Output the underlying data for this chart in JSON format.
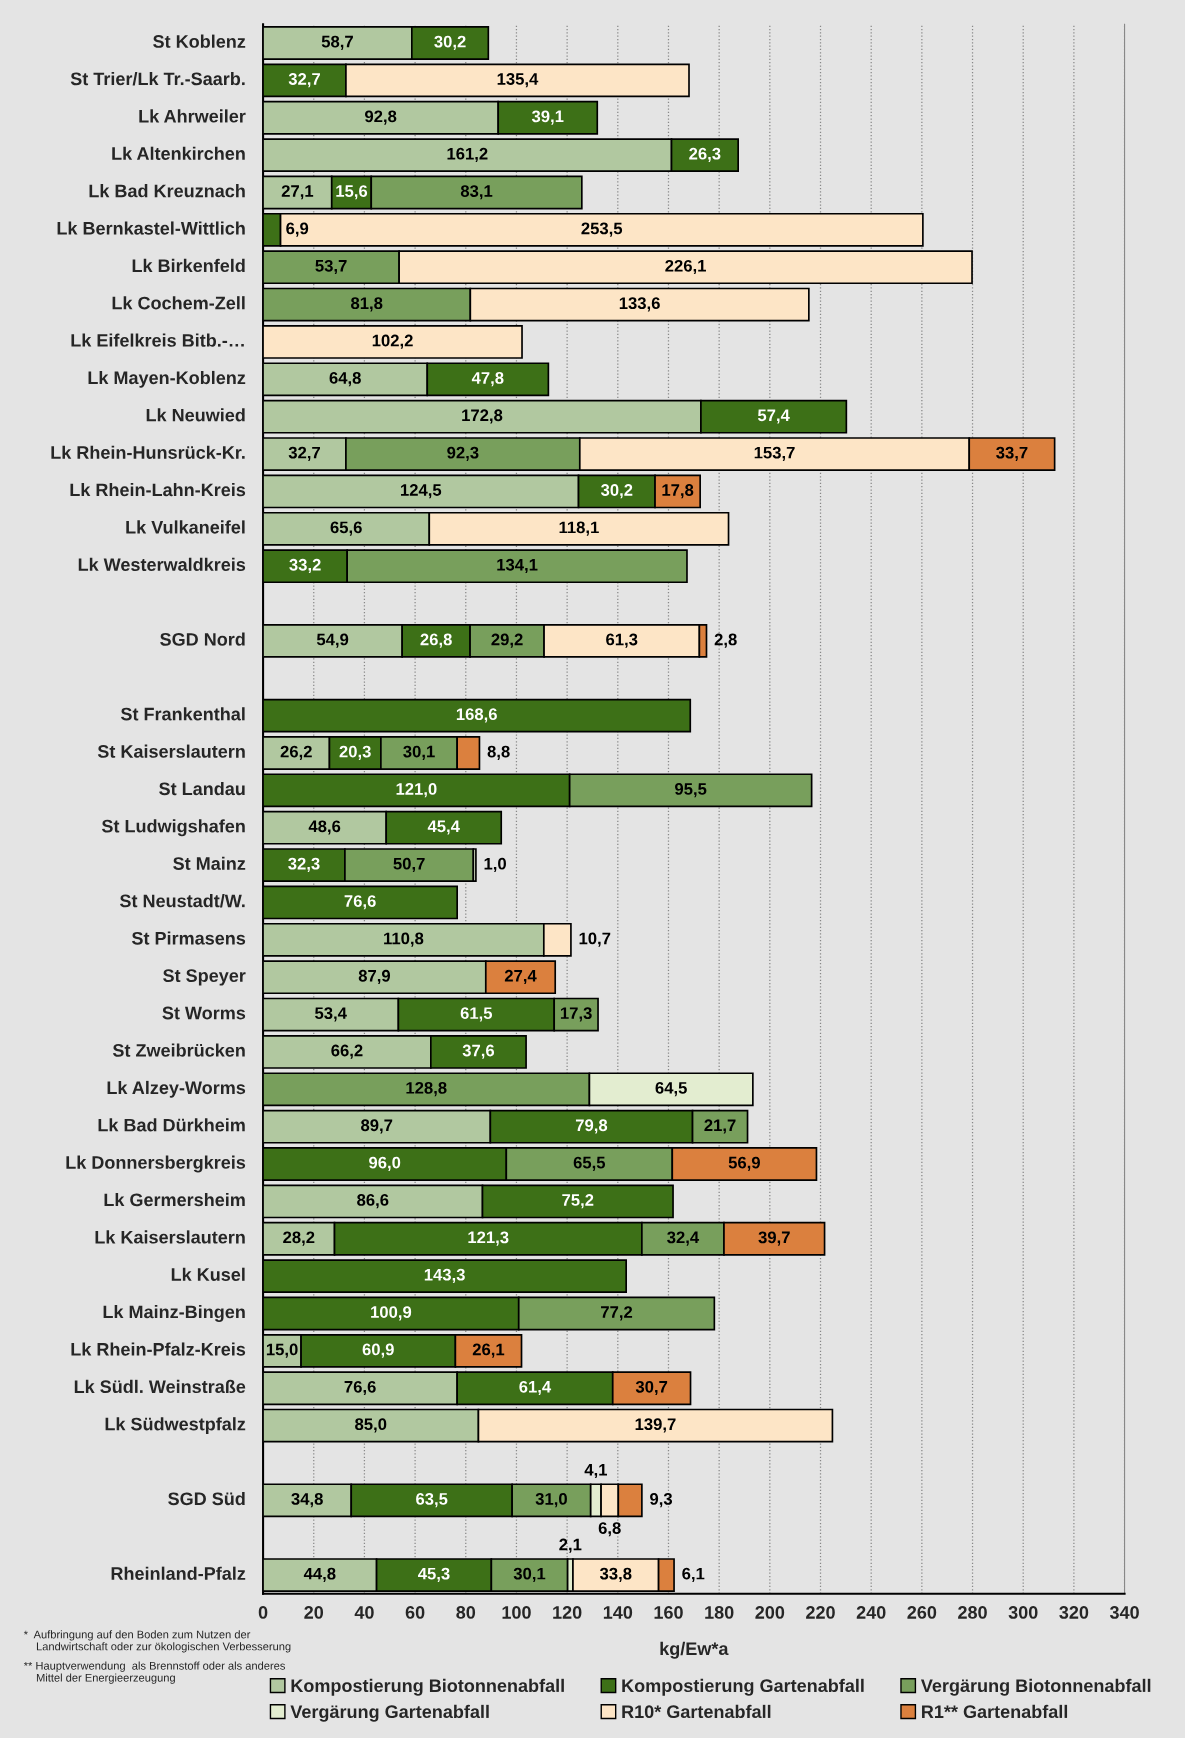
{
  "chart_data": {
    "type": "bar",
    "orientation": "horizontal",
    "stacked": true,
    "xlabel": "kg/Ew*a",
    "categories": [
      "St Koblenz",
      "St Trier/Lk Tr.-Saarb.",
      "Lk Ahrweiler",
      "Lk Altenkirchen",
      "Lk Bad Kreuznach",
      "Lk Bernkastel-Wittlich",
      "Lk Birkenfeld",
      "Lk Cochem-Zell",
      "Lk Eifelkreis Bitb.-…",
      "Lk Mayen-Koblenz",
      "Lk Neuwied",
      "Lk Rhein-Hunsrück-Kr.",
      "Lk Rhein-Lahn-Kreis",
      "Lk Vulkaneifel",
      "Lk Westerwaldkreis",
      null,
      "SGD Nord",
      null,
      "St Frankenthal",
      "St Kaiserslautern",
      "St Landau",
      "St Ludwigshafen",
      "St Mainz",
      "St Neustadt/W.",
      "St Pirmasens",
      "St Speyer",
      "St Worms",
      "St Zweibrücken",
      "Lk Alzey-Worms",
      "Lk Bad Dürkheim",
      "Lk Donnersbergkreis",
      "Lk Germersheim",
      "Lk Kaiserslautern",
      "Lk Kusel",
      "Lk Mainz-Bingen",
      "Lk Rhein-Pfalz-Kreis",
      "Lk Südl. Weinstraße",
      "Lk Südwestpfalz",
      null,
      "SGD Süd",
      null,
      "Rheinland-Pfalz"
    ],
    "series": [
      {
        "name": "Kompostierung Biotonnenabfall",
        "color": "#b1c8a0",
        "values": [
          58.7,
          null,
          92.8,
          161.2,
          27.1,
          null,
          null,
          null,
          null,
          64.8,
          172.8,
          32.7,
          124.5,
          65.6,
          null,
          null,
          54.9,
          null,
          null,
          26.2,
          null,
          48.6,
          null,
          null,
          110.8,
          87.9,
          53.4,
          66.2,
          null,
          89.7,
          null,
          86.6,
          28.2,
          null,
          null,
          15.0,
          76.6,
          85.0,
          null,
          34.8,
          null,
          44.8
        ],
        "value_labels": [
          "58,7",
          null,
          "92,8",
          "161,2",
          "27,1",
          null,
          null,
          null,
          null,
          "64,8",
          "172,8",
          "32,7",
          "124,5",
          "65,6",
          null,
          null,
          "54,9",
          null,
          null,
          "26,2",
          null,
          "48,6",
          null,
          null,
          "110,8",
          "87,9",
          "53,4",
          "66,2",
          null,
          "89,7",
          null,
          "86,6",
          "28,2",
          null,
          null,
          "15,0",
          "76,6",
          "85,0",
          null,
          "34,8",
          null,
          "44,8"
        ]
      },
      {
        "name": "Kompostierung Gartenabfall",
        "color": "#3d7017",
        "values": [
          30.2,
          32.7,
          39.1,
          26.3,
          15.6,
          6.9,
          null,
          null,
          null,
          47.8,
          57.4,
          null,
          30.2,
          null,
          33.2,
          null,
          26.8,
          null,
          168.6,
          20.3,
          121.0,
          45.4,
          32.3,
          76.6,
          null,
          null,
          61.5,
          37.6,
          null,
          79.8,
          96.0,
          75.2,
          121.3,
          143.3,
          100.9,
          60.9,
          61.4,
          null,
          null,
          63.5,
          null,
          45.3
        ],
        "value_labels": [
          "30,2",
          "32,7",
          "39,1",
          "26,3",
          "15,6",
          "6,9",
          null,
          null,
          null,
          "47,8",
          "57,4",
          null,
          "30,2",
          null,
          "33,2",
          null,
          "26,8",
          null,
          "168,6",
          "20,3",
          "121,0",
          "45,4",
          "32,3",
          "76,6",
          null,
          null,
          "61,5",
          "37,6",
          null,
          "79,8",
          "96,0",
          "75,2",
          "121,3",
          "143,3",
          "100,9",
          "60,9",
          "61,4",
          null,
          null,
          "63,5",
          null,
          "45,3"
        ]
      },
      {
        "name": "Vergärung Biotonnenabfall",
        "color": "#789f5c",
        "values": [
          null,
          null,
          null,
          null,
          83.1,
          null,
          53.7,
          81.8,
          null,
          null,
          null,
          92.3,
          null,
          null,
          134.1,
          null,
          29.2,
          null,
          null,
          30.1,
          95.5,
          null,
          50.7,
          null,
          null,
          null,
          17.3,
          null,
          128.8,
          21.7,
          65.5,
          null,
          32.4,
          null,
          77.2,
          null,
          null,
          null,
          null,
          31.0,
          null,
          30.1
        ],
        "value_labels": [
          null,
          null,
          null,
          null,
          "83,1",
          null,
          "53,7",
          "81,8",
          null,
          null,
          null,
          "92,3",
          null,
          null,
          "134,1",
          null,
          "29,2",
          null,
          null,
          "30,1",
          "95,5",
          null,
          "50,7",
          null,
          null,
          null,
          "17,3",
          null,
          "128,8",
          "21,7",
          "65,5",
          null,
          "32,4",
          null,
          "77,2",
          null,
          null,
          null,
          null,
          "31,0",
          null,
          "30,1"
        ]
      },
      {
        "name": "Vergärung Gartenabfall",
        "color": "#e3edd0",
        "values": [
          null,
          null,
          null,
          null,
          null,
          null,
          null,
          null,
          null,
          null,
          null,
          null,
          null,
          null,
          null,
          null,
          null,
          null,
          null,
          null,
          null,
          null,
          1.0,
          null,
          null,
          null,
          null,
          null,
          64.5,
          null,
          null,
          null,
          null,
          null,
          null,
          null,
          null,
          null,
          null,
          4.1,
          null,
          2.1
        ],
        "value_labels": [
          null,
          null,
          null,
          null,
          null,
          null,
          null,
          null,
          null,
          null,
          null,
          null,
          null,
          null,
          null,
          null,
          null,
          null,
          null,
          null,
          null,
          null,
          "1,0",
          null,
          null,
          null,
          null,
          null,
          "64,5",
          null,
          null,
          null,
          null,
          null,
          null,
          null,
          null,
          null,
          null,
          "4,1",
          null,
          "2,1"
        ]
      },
      {
        "name": "R10* Gartenabfall",
        "color": "#fde5c6",
        "values": [
          null,
          135.4,
          null,
          null,
          null,
          253.5,
          226.1,
          133.6,
          102.2,
          null,
          null,
          153.7,
          null,
          118.1,
          null,
          null,
          61.3,
          null,
          null,
          null,
          null,
          null,
          null,
          null,
          10.7,
          null,
          null,
          null,
          null,
          null,
          null,
          null,
          null,
          null,
          null,
          null,
          null,
          139.7,
          null,
          6.8,
          null,
          33.8
        ],
        "value_labels": [
          null,
          "135,4",
          null,
          null,
          null,
          "253,5",
          "226,1",
          "133,6",
          "102,2",
          null,
          null,
          "153,7",
          null,
          "118,1",
          null,
          null,
          "61,3",
          null,
          null,
          null,
          null,
          null,
          null,
          null,
          "10,7",
          null,
          null,
          null,
          null,
          null,
          null,
          null,
          null,
          null,
          null,
          null,
          null,
          "139,7",
          null,
          "6,8",
          null,
          "33,8"
        ]
      },
      {
        "name": "R1** Gartenabfall",
        "color": "#db803e",
        "values": [
          null,
          null,
          null,
          null,
          null,
          null,
          null,
          null,
          null,
          null,
          null,
          33.7,
          17.8,
          null,
          null,
          null,
          2.8,
          null,
          null,
          8.8,
          null,
          null,
          null,
          null,
          null,
          27.4,
          null,
          null,
          null,
          null,
          56.9,
          null,
          39.7,
          null,
          null,
          26.1,
          30.7,
          null,
          null,
          9.3,
          null,
          6.1
        ],
        "value_labels": [
          null,
          null,
          null,
          null,
          null,
          null,
          null,
          null,
          null,
          null,
          null,
          "33,7",
          "17,8",
          null,
          null,
          null,
          "2,8",
          null,
          null,
          "8,8",
          null,
          null,
          null,
          null,
          null,
          "27,4",
          null,
          null,
          null,
          null,
          "56,9",
          null,
          "39,7",
          null,
          null,
          "26,1",
          "30,7",
          null,
          null,
          "9,3",
          null,
          "6,1"
        ]
      }
    ],
    "xlim": [
      0,
      340
    ],
    "xticks": [
      0,
      20,
      40,
      60,
      80,
      100,
      120,
      140,
      160,
      180,
      200,
      220,
      240,
      260,
      280,
      300,
      320,
      340
    ],
    "grid": "x",
    "legend": "bottom",
    "annotations": [
      "*  Aufbringung auf den Boden zum Nutzen der\n    Landwirtschaft oder zur ökologischen Verbesserung",
      "** Hauptverwendung  als Brennstoff oder als anderes\n    Mittel der Energieerzeugung"
    ]
  }
}
